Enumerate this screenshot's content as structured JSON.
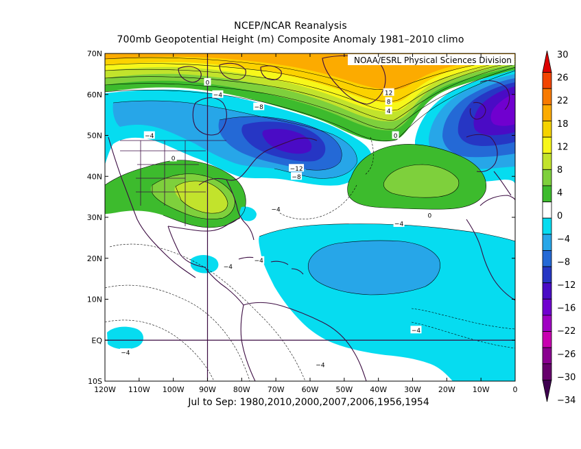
{
  "header": {
    "title_line1": "NCEP/NCAR Reanalysis",
    "title_line2": "700mb Geopotential Height (m) Composite Anomaly 1981–2010 climo"
  },
  "credit": "NOAA/ESRL Physical Sciences Division",
  "footer": {
    "subtitle": "Jul to Sep: 1980,2010,2000,2007,2006,1956,1954"
  },
  "map": {
    "lon_range": [
      -120,
      0
    ],
    "lat_range": [
      -10,
      70
    ],
    "lat_labels": [
      "70N",
      "60N",
      "50N",
      "40N",
      "30N",
      "20N",
      "10N",
      "EQ",
      "10S"
    ],
    "lon_labels": [
      "120W",
      "110W",
      "100W",
      "90W",
      "80W",
      "70W",
      "60W",
      "50W",
      "40W",
      "30W",
      "20W",
      "10W",
      "0"
    ],
    "reference_lines": {
      "meridian": "90W",
      "parallel": "EQ"
    }
  },
  "contour_labels": [
    {
      "text": "12",
      "lon": -37,
      "lat": 60.5
    },
    {
      "text": "8",
      "lon": -37,
      "lat": 58.3
    },
    {
      "text": "4",
      "lon": -37,
      "lat": 56
    },
    {
      "text": "0",
      "lon": -35,
      "lat": 50
    },
    {
      "text": "0",
      "lon": -90,
      "lat": 63
    },
    {
      "text": "−4",
      "lon": -87,
      "lat": 60
    },
    {
      "text": "−8",
      "lon": -75,
      "lat": 57
    },
    {
      "text": "−12",
      "lon": -64,
      "lat": 42
    },
    {
      "text": "−8",
      "lon": -64,
      "lat": 40
    },
    {
      "text": "−4",
      "lon": -107,
      "lat": 50
    },
    {
      "text": "0",
      "lon": -100,
      "lat": 44.5
    },
    {
      "text": "−4",
      "lon": -70,
      "lat": 32
    },
    {
      "text": "0",
      "lon": -25,
      "lat": 30.5
    },
    {
      "text": "−4",
      "lon": -34,
      "lat": 28.5
    },
    {
      "text": "−4",
      "lon": -75,
      "lat": 19.5
    },
    {
      "text": "−4",
      "lon": -84,
      "lat": 18
    },
    {
      "text": "−4",
      "lon": -29,
      "lat": 2.5
    },
    {
      "text": "−4",
      "lon": -114,
      "lat": -3
    },
    {
      "text": "−4",
      "lon": -57,
      "lat": -6
    }
  ],
  "colorbar": {
    "labels": [
      "30",
      "26",
      "22",
      "18",
      "12",
      "8",
      "4",
      "0",
      "−4",
      "−8",
      "−12",
      "−16",
      "−22",
      "−26",
      "−30",
      "−34"
    ],
    "colors": [
      "#dd0000",
      "#f24400",
      "#f87a00",
      "#fcab00",
      "#f5d300",
      "#f7f71a",
      "#c2e32c",
      "#7ed03c",
      "#3dbb2d",
      "#ffffff",
      "#06dcf0",
      "#27a6e8",
      "#2469d6",
      "#2636c4",
      "#4a0bc5",
      "#7000cf",
      "#a000c3",
      "#c800b0",
      "#8a0090",
      "#67006c",
      "#3e0050"
    ]
  },
  "colors": {
    "neg4": "#06dcf0",
    "neg8": "#27a6e8",
    "neg12": "#2469d6",
    "neg16": "#2636c4",
    "neg20": "#4a0bc5",
    "neg24": "#7000cf",
    "pos0": "#3dbb2d",
    "pos4": "#7ed03c",
    "pos8": "#c2e32c",
    "pos12": "#f7f71a",
    "pos16": "#fcd200",
    "pos20": "#fcab00",
    "coast": "#3a0a40"
  }
}
